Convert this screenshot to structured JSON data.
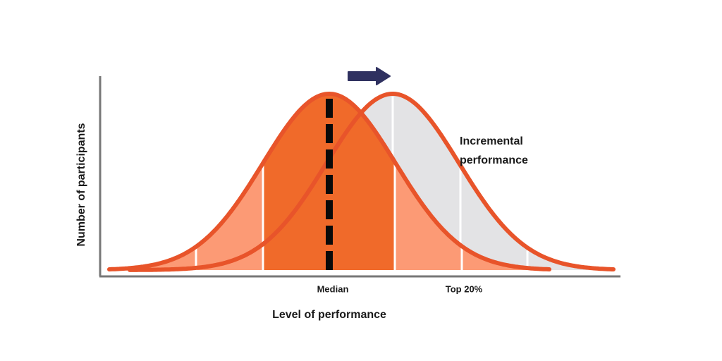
{
  "axis": {
    "ylabel": "Number of participants",
    "xlabel": "Level of performance"
  },
  "markers": {
    "median": "Median",
    "top20": "Top 20%"
  },
  "annotation": {
    "line1": "Incremental",
    "line2": "performance"
  },
  "colors": {
    "curve_outline": "#e8542a",
    "baseline_fill_core": "#f06a2a",
    "baseline_fill_tail": "#fc9a75",
    "shifted_fill": "#e3e3e5",
    "median_line": "#0a0a0a",
    "arrow": "#2f3160",
    "axis": "#777777",
    "divider": "#ffffff"
  },
  "icons": {
    "shift_arrow": "right-arrow-icon"
  }
}
